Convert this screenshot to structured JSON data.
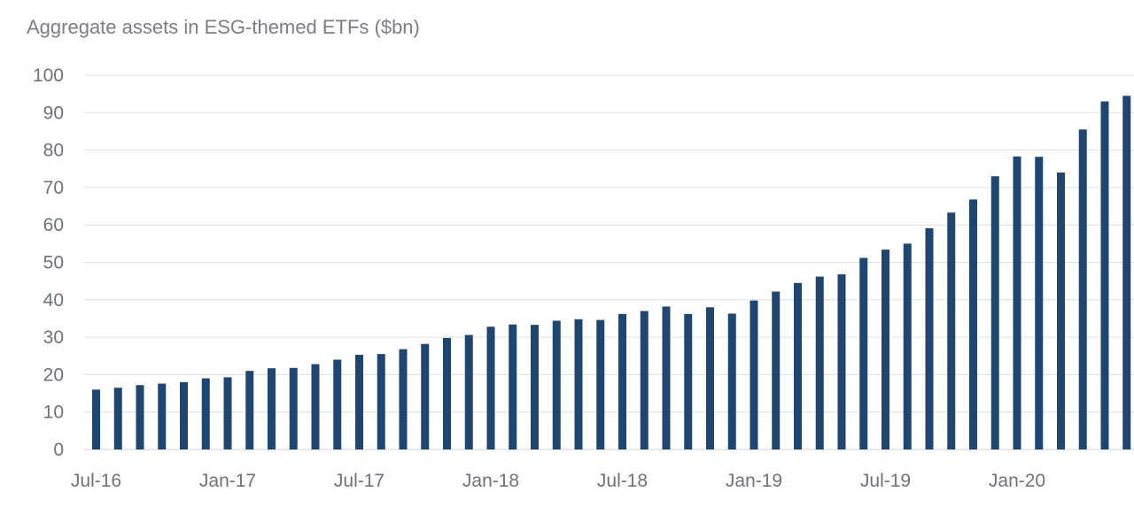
{
  "chart_data": {
    "type": "bar",
    "title": "Aggregate assets in ESG-themed ETFs ($bn)",
    "xlabel": "",
    "ylabel": "",
    "ylim": [
      0,
      100
    ],
    "y_ticks": [
      0,
      10,
      20,
      30,
      40,
      50,
      60,
      70,
      80,
      90,
      100
    ],
    "x_tick_labels": [
      "Jul-16",
      "Jan-17",
      "Jul-17",
      "Jan-18",
      "Jul-18",
      "Jan-19",
      "Jul-19",
      "Jan-20"
    ],
    "categories": [
      "Jul-16",
      "Aug-16",
      "Sep-16",
      "Oct-16",
      "Nov-16",
      "Dec-16",
      "Jan-17",
      "Feb-17",
      "Mar-17",
      "Apr-17",
      "May-17",
      "Jun-17",
      "Jul-17",
      "Aug-17",
      "Sep-17",
      "Oct-17",
      "Nov-17",
      "Dec-17",
      "Jan-18",
      "Feb-18",
      "Mar-18",
      "Apr-18",
      "May-18",
      "Jun-18",
      "Jul-18",
      "Aug-18",
      "Sep-18",
      "Oct-18",
      "Nov-18",
      "Dec-18",
      "Jan-19",
      "Feb-19",
      "Mar-19",
      "Apr-19",
      "May-19",
      "Jun-19",
      "Jul-19",
      "Aug-19",
      "Sep-19",
      "Oct-19",
      "Nov-19",
      "Dec-19",
      "Jan-20",
      "Feb-20",
      "Mar-20",
      "Apr-20",
      "May-20",
      "Jun-20"
    ],
    "values": [
      16,
      16.5,
      17.2,
      17.6,
      18,
      19,
      19.3,
      21,
      21.7,
      21.8,
      22.8,
      24,
      25.3,
      25.5,
      26.8,
      28.2,
      29.8,
      30.6,
      32.8,
      33.4,
      33.3,
      34.4,
      34.8,
      34.6,
      36.2,
      37,
      38.2,
      36.2,
      38,
      36.3,
      39.8,
      42.2,
      44.5,
      46.2,
      46.8,
      51.2,
      53.4,
      55,
      59.1,
      63.3,
      66.8,
      73,
      78.3,
      78.2,
      74,
      85.5,
      93,
      94.5
    ],
    "grid": true,
    "colors": {
      "bar": "#1f4670",
      "grid": "#dcdfe3",
      "text": "#6f7378"
    }
  }
}
